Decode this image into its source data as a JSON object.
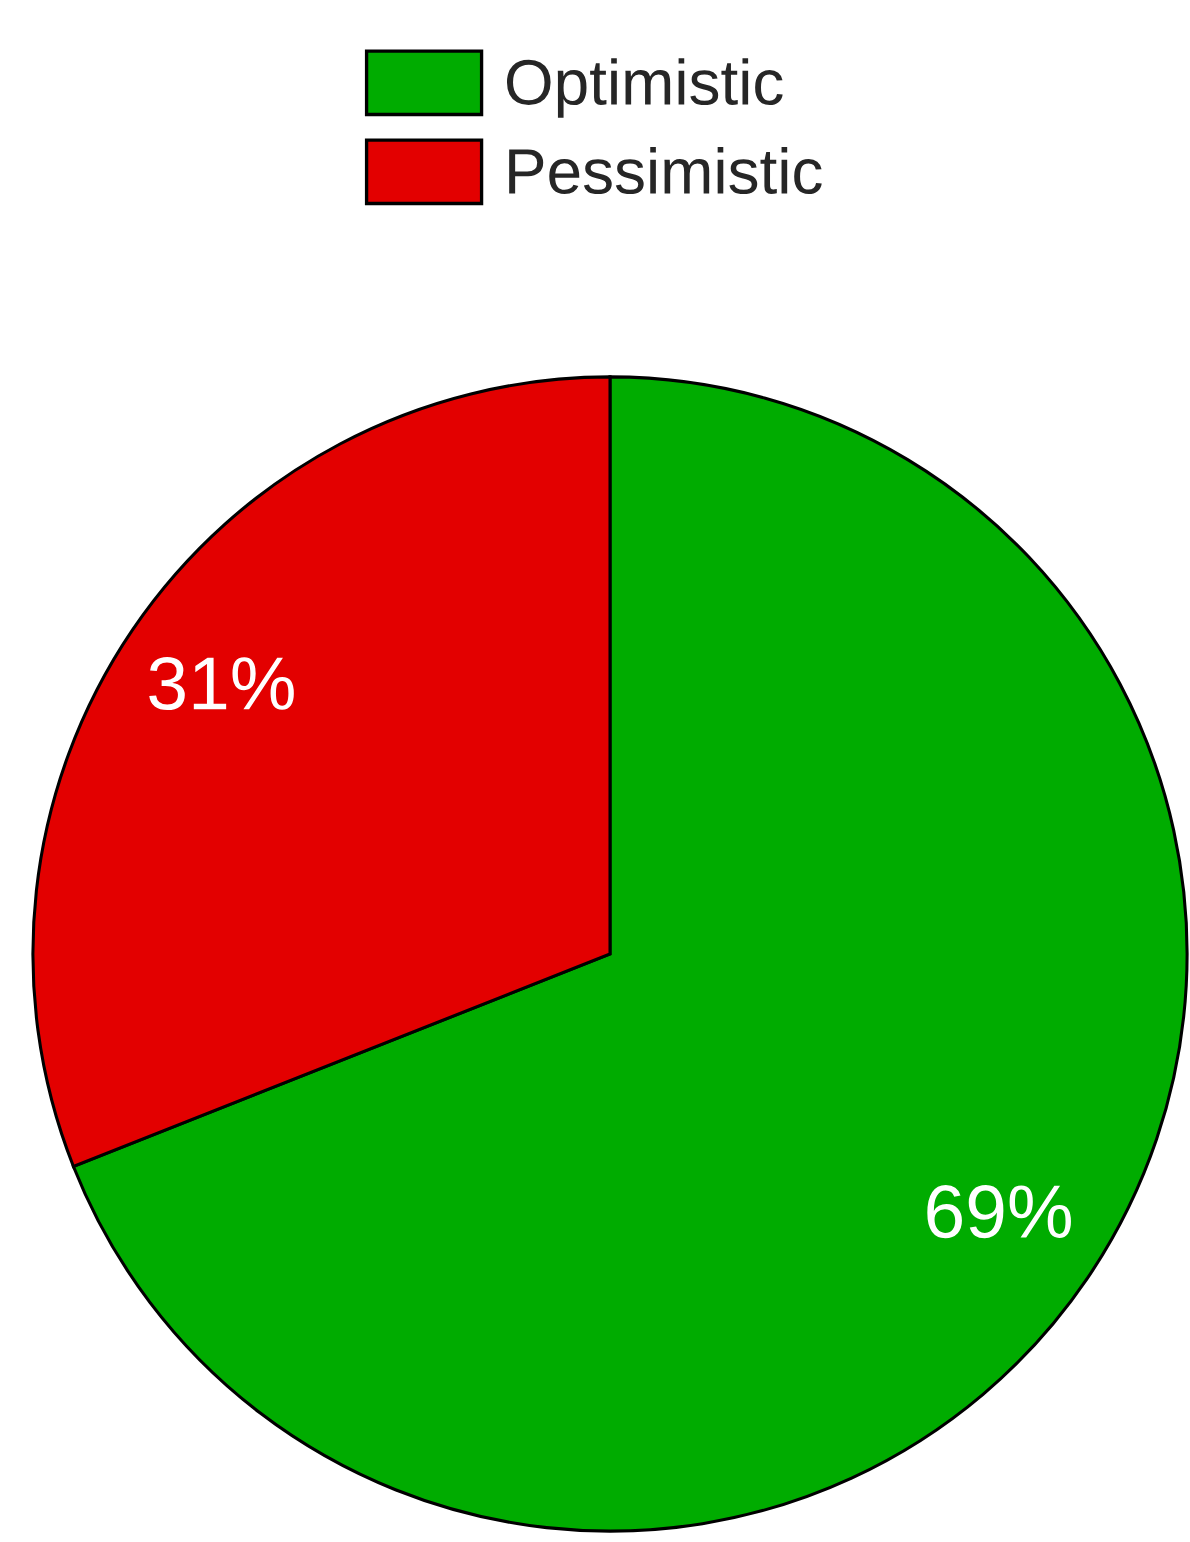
{
  "chart_data": {
    "type": "pie",
    "categories": [
      "Optimistic",
      "Pessimistic"
    ],
    "values": [
      69,
      31
    ],
    "colors": [
      "#00ac00",
      "#e30000"
    ],
    "value_labels": [
      "69%",
      "31%"
    ],
    "legend": "top"
  }
}
